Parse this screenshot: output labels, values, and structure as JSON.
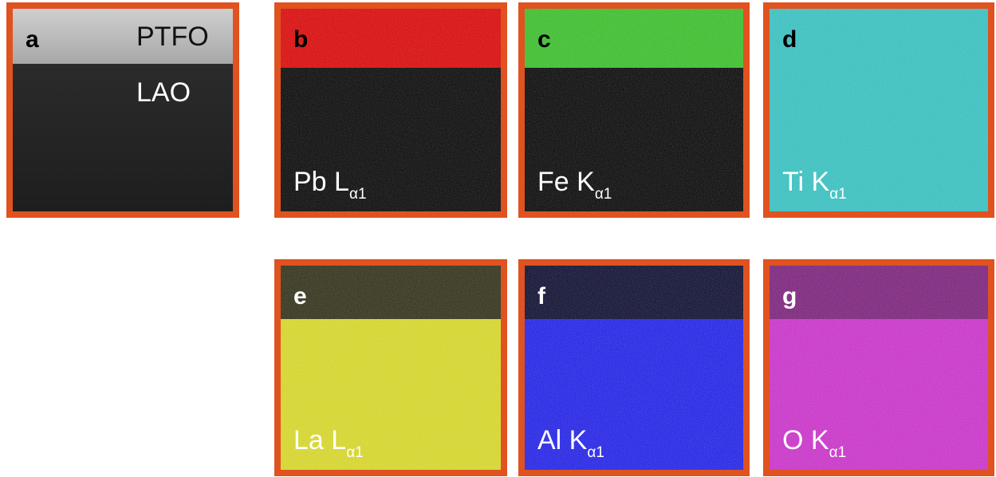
{
  "panels": [
    {
      "letter": "a",
      "top_text": "PTFO",
      "bottom_text": "LAO"
    },
    {
      "letter": "b",
      "element": "Pb L",
      "line": "α1"
    },
    {
      "letter": "c",
      "element": "Fe K",
      "line": "α1"
    },
    {
      "letter": "d",
      "element": "Ti K",
      "line": "α1"
    },
    {
      "letter": "e",
      "element": "La L",
      "line": "α1"
    },
    {
      "letter": "f",
      "element": "Al K",
      "line": "α1"
    },
    {
      "letter": "g",
      "element": "O K",
      "line": "α1"
    }
  ]
}
